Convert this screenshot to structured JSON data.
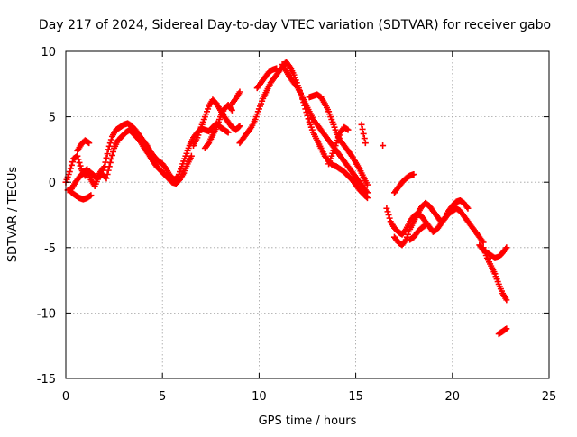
{
  "chart_data": {
    "type": "scatter",
    "title": "Day 217 of 2024, Sidereal Day-to-day VTEC variation (SDTVAR) for receiver gabo",
    "xlabel": "GPS time / hours",
    "ylabel": "SDTVAR / TECUs",
    "xlim": [
      0,
      25
    ],
    "ylim": [
      -15,
      10
    ],
    "xticks": [
      0,
      5,
      10,
      15,
      20,
      25
    ],
    "xtick_labels": [
      "0",
      "5",
      "10",
      "15",
      "20",
      "25"
    ],
    "yticks": [
      -15,
      -10,
      -5,
      0,
      5,
      10
    ],
    "ytick_labels": [
      "-15",
      "-10",
      "-5",
      "0",
      "5",
      "10"
    ],
    "grid": true,
    "marker": "+",
    "series": [
      {
        "name": "SDTVAR",
        "color": "#ff0000",
        "segments": [
          {
            "x": [
              0.0,
              0.2,
              0.4,
              0.6,
              0.8,
              1.0,
              1.2,
              1.4,
              1.6,
              1.8,
              2.0,
              2.2,
              2.4,
              2.6,
              2.8,
              3.0,
              3.2,
              3.4,
              3.6,
              3.8,
              4.0,
              4.2,
              4.4,
              4.6,
              4.8,
              5.0,
              5.2,
              5.4,
              5.6,
              5.8,
              6.0,
              6.2,
              6.4,
              6.6,
              6.8,
              7.0,
              7.2,
              7.4,
              7.6,
              7.8,
              8.0,
              8.2,
              8.4
            ],
            "y": [
              0.0,
              0.8,
              1.8,
              2.0,
              1.0,
              0.5,
              0.8,
              0.6,
              0.3,
              0.8,
              1.2,
              2.5,
              3.5,
              4.0,
              4.2,
              4.4,
              4.5,
              4.3,
              4.0,
              3.6,
              3.2,
              2.8,
              2.3,
              1.9,
              1.6,
              1.4,
              1.0,
              0.5,
              0.2,
              0.4,
              1.2,
              2.0,
              2.8,
              3.4,
              3.8,
              4.1,
              4.0,
              3.9,
              4.2,
              4.5,
              4.2,
              4.0,
              3.8
            ]
          },
          {
            "x": [
              0.1,
              0.3,
              0.5,
              0.7,
              0.9,
              1.1,
              1.3,
              1.5,
              1.7,
              1.9,
              2.1,
              2.3,
              2.5,
              2.7,
              2.9,
              3.1,
              3.3,
              3.5,
              3.7,
              3.9,
              4.1,
              4.3,
              4.5,
              4.7,
              4.9,
              5.1,
              5.3,
              5.5,
              5.7,
              5.9,
              6.1,
              6.3,
              6.5
            ],
            "y": [
              -0.6,
              -0.5,
              0.0,
              0.4,
              0.7,
              1.0,
              0.2,
              -0.3,
              0.4,
              0.6,
              0.3,
              1.5,
              2.6,
              3.2,
              3.5,
              3.8,
              4.0,
              3.7,
              3.4,
              3.0,
              2.5,
              2.1,
              1.6,
              1.2,
              0.9,
              0.6,
              0.3,
              0.0,
              -0.1,
              0.2,
              0.7,
              1.4,
              2.0
            ]
          },
          {
            "x": [
              0.3,
              0.5,
              0.7,
              0.9,
              1.1,
              1.3
            ],
            "y": [
              -0.8,
              -1.0,
              -1.2,
              -1.3,
              -1.2,
              -1.0
            ]
          },
          {
            "x": [
              0.6,
              0.8,
              1.0,
              1.2
            ],
            "y": [
              2.4,
              2.9,
              3.2,
              3.0
            ]
          },
          {
            "x": [
              6.6,
              6.8,
              7.0,
              7.2,
              7.4,
              7.6,
              7.8,
              8.0,
              8.2,
              8.4,
              8.6,
              8.8,
              9.0
            ],
            "y": [
              2.8,
              3.4,
              4.2,
              5.0,
              5.8,
              6.3,
              6.0,
              5.5,
              5.0,
              4.6,
              4.2,
              4.0,
              4.3
            ]
          },
          {
            "x": [
              7.2,
              7.4,
              7.6,
              7.8,
              8.0,
              8.2,
              8.4,
              8.6
            ],
            "y": [
              2.6,
              3.0,
              3.6,
              4.2,
              5.0,
              5.6,
              5.9,
              5.5
            ]
          },
          {
            "x": [
              8.6,
              8.8,
              9.0
            ],
            "y": [
              6.0,
              6.4,
              6.9
            ]
          },
          {
            "x": [
              9.0,
              9.2,
              9.4,
              9.6,
              9.8,
              10.0,
              10.2,
              10.4,
              10.6,
              10.8,
              11.0,
              11.2,
              11.4,
              11.6,
              11.8,
              12.0,
              12.2,
              12.4,
              12.6,
              12.8,
              13.0,
              13.2,
              13.4,
              13.6,
              13.8,
              14.0,
              14.2,
              14.4,
              14.6,
              14.8,
              15.0,
              15.2,
              15.4,
              15.6
            ],
            "y": [
              3.0,
              3.4,
              3.8,
              4.2,
              4.8,
              5.6,
              6.4,
              7.0,
              7.6,
              8.0,
              8.4,
              8.8,
              9.2,
              8.8,
              8.2,
              7.4,
              6.6,
              5.6,
              4.6,
              3.8,
              3.2,
              2.6,
              2.0,
              1.6,
              1.3,
              1.2,
              1.0,
              0.8,
              0.5,
              0.2,
              -0.2,
              -0.6,
              -0.9,
              -1.2
            ]
          },
          {
            "x": [
              9.9,
              10.1,
              10.3,
              10.5,
              10.7,
              10.9
            ],
            "y": [
              7.2,
              7.6,
              8.0,
              8.4,
              8.6,
              8.7
            ]
          },
          {
            "x": [
              11.2,
              11.4,
              11.6,
              11.8,
              12.0,
              12.2,
              12.4,
              12.6,
              12.8,
              13.0,
              13.2,
              13.4,
              13.6,
              13.8,
              14.0,
              14.2,
              14.4,
              14.6,
              14.8,
              15.0,
              15.2,
              15.4,
              15.6
            ],
            "y": [
              9.0,
              8.5,
              8.0,
              7.6,
              7.2,
              6.6,
              6.0,
              5.4,
              4.8,
              4.4,
              4.0,
              3.6,
              3.2,
              2.8,
              2.4,
              2.0,
              1.6,
              1.2,
              0.8,
              0.4,
              0.0,
              -0.4,
              -0.8
            ]
          },
          {
            "x": [
              12.6,
              12.8,
              13.0,
              13.2,
              13.4,
              13.6,
              13.8,
              14.0,
              14.2,
              14.4,
              14.6,
              14.8,
              15.0,
              15.2,
              15.4,
              15.6
            ],
            "y": [
              6.5,
              6.6,
              6.7,
              6.5,
              6.0,
              5.4,
              4.6,
              3.8,
              3.2,
              2.8,
              2.4,
              2.0,
              1.5,
              1.0,
              0.4,
              -0.2
            ]
          },
          {
            "x": [
              13.6,
              13.8,
              14.0,
              14.2,
              14.4,
              14.6
            ],
            "y": [
              1.4,
              2.2,
              3.0,
              3.8,
              4.2,
              4.0
            ]
          },
          {
            "x": [
              15.3,
              15.5
            ],
            "y": [
              4.4,
              3.0
            ]
          },
          {
            "x": [
              16.4
            ],
            "y": [
              2.8
            ]
          },
          {
            "x": [
              16.6,
              16.8,
              17.0,
              17.2,
              17.4,
              17.6,
              17.8,
              18.0,
              18.2,
              18.4,
              18.6,
              18.8,
              19.0,
              19.2,
              19.4,
              19.6,
              19.8,
              20.0,
              20.2,
              20.4,
              20.6,
              20.8,
              21.0,
              21.2,
              21.4,
              21.6
            ],
            "y": [
              -2.0,
              -3.0,
              -3.5,
              -3.8,
              -4.0,
              -3.6,
              -3.0,
              -2.6,
              -2.4,
              -2.6,
              -3.0,
              -3.4,
              -3.8,
              -3.6,
              -3.2,
              -2.8,
              -2.4,
              -2.2,
              -2.0,
              -2.2,
              -2.6,
              -3.0,
              -3.4,
              -3.8,
              -4.2,
              -4.6
            ]
          },
          {
            "x": [
              17.0,
              17.2,
              17.4,
              17.6,
              17.8,
              18.0,
              18.2,
              18.4,
              18.6,
              18.8,
              19.0,
              19.2,
              19.4,
              19.6,
              19.8,
              20.0,
              20.2,
              20.4,
              20.6,
              20.8
            ],
            "y": [
              -4.2,
              -4.6,
              -4.8,
              -4.4,
              -3.6,
              -3.0,
              -2.4,
              -1.9,
              -1.6,
              -1.8,
              -2.2,
              -2.6,
              -3.0,
              -2.8,
              -2.2,
              -1.8,
              -1.5,
              -1.4,
              -1.6,
              -2.0
            ]
          },
          {
            "x": [
              17.0,
              17.2,
              17.4,
              17.6,
              17.8,
              18.0
            ],
            "y": [
              -0.8,
              -0.4,
              0.0,
              0.3,
              0.5,
              0.6
            ]
          },
          {
            "x": [
              17.8,
              18.0,
              18.2,
              18.4,
              18.6
            ],
            "y": [
              -4.4,
              -4.2,
              -3.8,
              -3.5,
              -3.3
            ]
          },
          {
            "x": [
              21.6,
              21.8,
              22.0,
              22.2,
              22.4,
              22.6,
              22.8
            ],
            "y": [
              -5.0,
              -5.8,
              -6.4,
              -7.0,
              -7.8,
              -8.5,
              -9.0
            ]
          },
          {
            "x": [
              21.4,
              21.6,
              21.8,
              22.0,
              22.2,
              22.4,
              22.6,
              22.8
            ],
            "y": [
              -4.8,
              -5.2,
              -5.4,
              -5.6,
              -5.8,
              -5.7,
              -5.4,
              -5.0
            ]
          },
          {
            "x": [
              22.4,
              22.6,
              22.8
            ],
            "y": [
              -11.6,
              -11.4,
              -11.2
            ]
          }
        ]
      }
    ]
  }
}
